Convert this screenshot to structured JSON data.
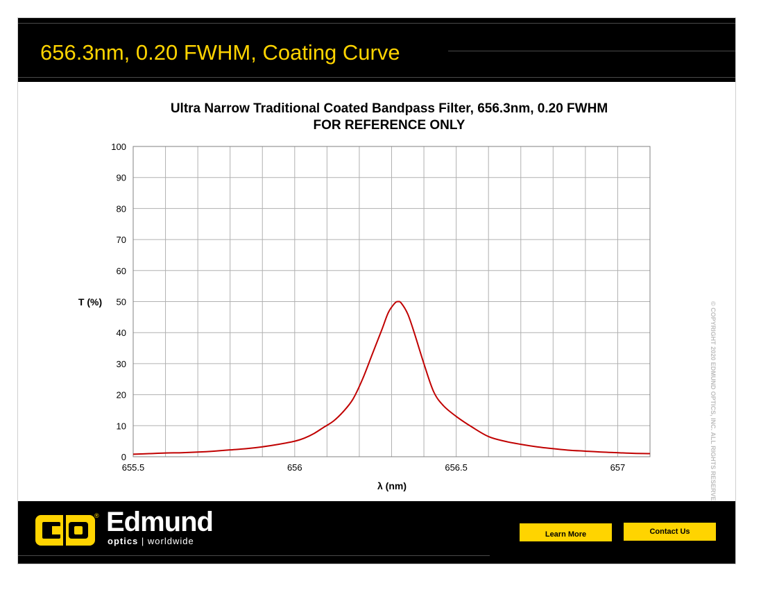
{
  "header": {
    "title": "656.3nm, 0.20 FWHM, Coating Curve"
  },
  "chart_data": {
    "type": "line",
    "title": "Ultra Narrow Traditional Coated Bandpass Filter, 656.3nm, 0.20 FWHM",
    "subtitle": "FOR REFERENCE ONLY",
    "xlabel": "λ (nm)",
    "ylabel": "T (%)",
    "xlim": [
      655.5,
      657.1
    ],
    "ylim": [
      0,
      100
    ],
    "x_ticks": [
      655.5,
      656,
      656.5,
      657
    ],
    "x_tick_labels": [
      "655.5",
      "656",
      "656.5",
      "657"
    ],
    "y_ticks": [
      0,
      10,
      20,
      30,
      40,
      50,
      60,
      70,
      80,
      90,
      100
    ],
    "y_tick_labels": [
      "0",
      "10",
      "20",
      "30",
      "40",
      "50",
      "60",
      "70",
      "80",
      "90",
      "100"
    ],
    "grid": true,
    "legend": "none",
    "series": [
      {
        "color": "#c00000",
        "x": [
          655.5,
          655.55,
          655.6,
          655.65,
          655.7,
          655.75,
          655.8,
          655.85,
          655.9,
          655.95,
          656.0,
          656.03,
          656.06,
          656.09,
          656.12,
          656.15,
          656.18,
          656.21,
          656.24,
          656.27,
          656.29,
          656.31,
          656.32,
          656.33,
          656.35,
          656.37,
          656.4,
          656.43,
          656.46,
          656.5,
          656.55,
          656.6,
          656.65,
          656.7,
          656.75,
          656.8,
          656.85,
          656.9,
          656.95,
          657.0,
          657.05,
          657.1
        ],
        "y": [
          0.8,
          1.0,
          1.2,
          1.3,
          1.5,
          1.8,
          2.2,
          2.6,
          3.2,
          4.0,
          5.0,
          6.0,
          7.5,
          9.5,
          11.5,
          14.5,
          18.5,
          25.0,
          33.0,
          41.0,
          46.5,
          49.5,
          50.0,
          49.5,
          46.0,
          40.0,
          30.0,
          21.0,
          16.5,
          13.0,
          9.5,
          6.5,
          5.0,
          4.0,
          3.2,
          2.6,
          2.1,
          1.8,
          1.5,
          1.3,
          1.1,
          1.0
        ]
      }
    ]
  },
  "watermark": {
    "text": "© COPYRIGHT 2020 EDMUND OPTICS, INC. ALL RIGHTS RESERVED"
  },
  "footer": {
    "logo_reg": "®",
    "logo_name": "Edmund",
    "logo_sub_bold": "optics",
    "logo_sub_rest": " | worldwide",
    "learn_more_label": "Learn More",
    "contact_us_label": "Contact Us"
  },
  "colors": {
    "accent": "#ffd400",
    "curve": "#c00000",
    "band": "#000000"
  }
}
